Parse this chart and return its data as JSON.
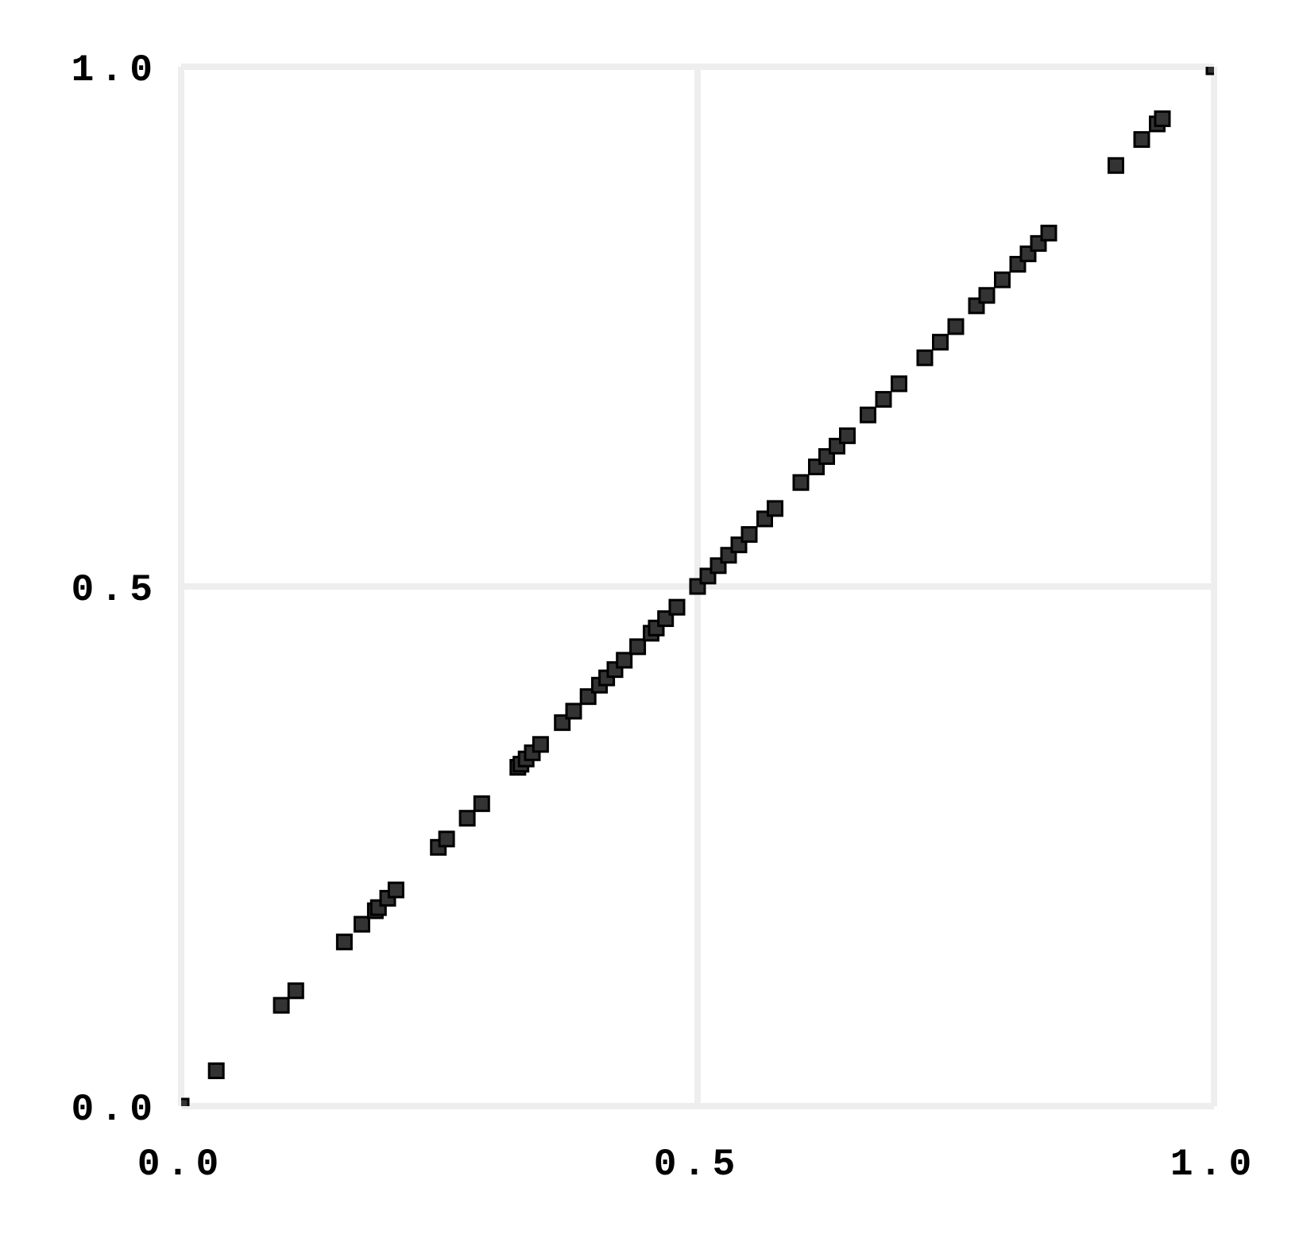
{
  "chart_data": {
    "type": "scatter",
    "x": [
      0,
      0.034,
      0.097,
      0.111,
      0.158,
      0.175,
      0.188,
      0.191,
      0.2,
      0.208,
      0.249,
      0.257,
      0.277,
      0.291,
      0.326,
      0.329,
      0.334,
      0.34,
      0.348,
      0.369,
      0.38,
      0.394,
      0.405,
      0.412,
      0.42,
      0.429,
      0.442,
      0.455,
      0.46,
      0.469,
      0.48,
      0.5,
      0.51,
      0.52,
      0.53,
      0.54,
      0.55,
      0.565,
      0.575,
      0.6,
      0.615,
      0.625,
      0.635,
      0.645,
      0.665,
      0.68,
      0.695,
      0.72,
      0.735,
      0.75,
      0.77,
      0.78,
      0.795,
      0.81,
      0.82,
      0.83,
      0.84,
      0.905,
      0.93,
      0.945,
      0.95,
      1.0
    ],
    "series": [
      {
        "color": "#333333",
        "values": [
          0,
          0.034,
          0.097,
          0.111,
          0.158,
          0.175,
          0.188,
          0.191,
          0.2,
          0.208,
          0.249,
          0.257,
          0.277,
          0.291,
          0.326,
          0.329,
          0.334,
          0.34,
          0.348,
          0.369,
          0.38,
          0.394,
          0.405,
          0.412,
          0.42,
          0.429,
          0.442,
          0.455,
          0.46,
          0.469,
          0.48,
          0.5,
          0.51,
          0.52,
          0.53,
          0.54,
          0.55,
          0.565,
          0.575,
          0.6,
          0.615,
          0.625,
          0.635,
          0.645,
          0.665,
          0.68,
          0.695,
          0.72,
          0.735,
          0.75,
          0.77,
          0.78,
          0.795,
          0.81,
          0.82,
          0.83,
          0.84,
          0.905,
          0.93,
          0.945,
          0.95,
          1.0
        ]
      }
    ],
    "xlim": [
      0,
      1
    ],
    "ylim": [
      0,
      1
    ],
    "xticks": [
      {
        "value": 0,
        "label": "0.0"
      },
      {
        "value": 0.5,
        "label": "0.5"
      },
      {
        "value": 1,
        "label": "1.0"
      }
    ],
    "yticks": [
      {
        "value": 0,
        "label": "0.0"
      },
      {
        "value": 0.5,
        "label": "0.5"
      },
      {
        "value": 1,
        "label": "1.0"
      }
    ],
    "grid": true,
    "marker": "square",
    "legend": false
  }
}
